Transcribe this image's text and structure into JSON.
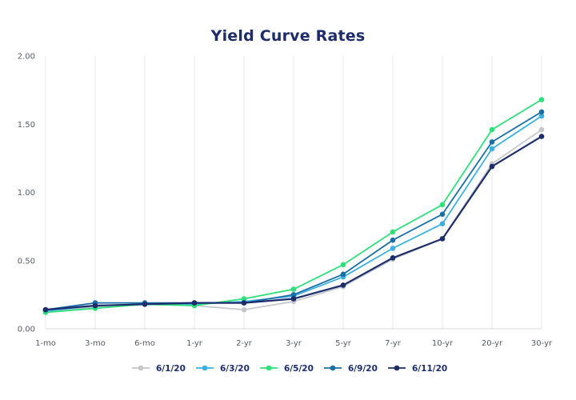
{
  "chart_data": {
    "type": "line",
    "title": "Yield Curve Rates",
    "xlabel": "",
    "ylabel": "",
    "categories": [
      "1-mo",
      "3-mo",
      "6-mo",
      "1-yr",
      "2-yr",
      "3-yr",
      "5-yr",
      "7-yr",
      "10-yr",
      "20-yr",
      "30-yr"
    ],
    "ylim": [
      0,
      2
    ],
    "yticks": [
      "0.00",
      "0.50",
      "1.00",
      "1.50",
      "2.00"
    ],
    "grid": "vertical",
    "legend": "bottom",
    "series": [
      {
        "name": "6/1/20",
        "color": "#c4c8cc",
        "values": [
          0.13,
          0.16,
          0.18,
          0.17,
          0.14,
          0.2,
          0.31,
          0.51,
          0.66,
          1.21,
          1.46
        ]
      },
      {
        "name": "6/3/20",
        "color": "#3cb0e2",
        "values": [
          0.13,
          0.17,
          0.18,
          0.18,
          0.2,
          0.24,
          0.38,
          0.59,
          0.77,
          1.32,
          1.56
        ]
      },
      {
        "name": "6/5/20",
        "color": "#2ee07a",
        "values": [
          0.12,
          0.15,
          0.18,
          0.17,
          0.22,
          0.29,
          0.47,
          0.71,
          0.91,
          1.46,
          1.68
        ]
      },
      {
        "name": "6/9/20",
        "color": "#1a6fa6",
        "values": [
          0.14,
          0.19,
          0.19,
          0.19,
          0.19,
          0.25,
          0.4,
          0.65,
          0.84,
          1.37,
          1.59
        ]
      },
      {
        "name": "6/11/20",
        "color": "#1d2c6b",
        "values": [
          0.14,
          0.17,
          0.18,
          0.19,
          0.19,
          0.22,
          0.32,
          0.52,
          0.66,
          1.19,
          1.41
        ]
      }
    ]
  }
}
